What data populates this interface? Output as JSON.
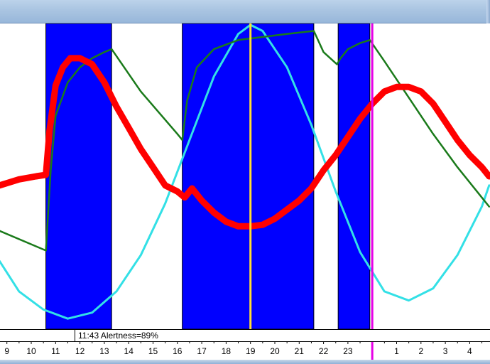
{
  "window": {
    "title": ""
  },
  "status_bar": {
    "text": "11:43 Alertness=89%"
  },
  "colors": {
    "titlebar": "#a9c4e1",
    "plot_background": "#ffffff",
    "sleep_band": "#0000ff",
    "alertness_curve": "#ff0000",
    "circadian_curve": "#33e0e6",
    "homeostatic_curve": "#1a7a1a",
    "cursor_line": "#ffdd33",
    "current_time_line": "#e600e6",
    "tick_color": "#000000"
  },
  "chart_data": {
    "type": "line",
    "title": "",
    "xlabel": "",
    "ylabel": "",
    "x_unit": "hour of day",
    "x_tick_labels": [
      "9",
      "10",
      "11",
      "12",
      "13",
      "14",
      "15",
      "16",
      "17",
      "18",
      "19",
      "20",
      "21",
      "22",
      "23",
      "",
      "1",
      "2",
      "3",
      "4"
    ],
    "x_range": [
      8.7,
      28.8
    ],
    "ylim": [
      0,
      100
    ],
    "grid": false,
    "legend": "none",
    "sleep_periods": [
      {
        "start": 10.6,
        "end": 13.3
      },
      {
        "start": 16.2,
        "end": 21.6
      },
      {
        "start": 22.6,
        "end": 23.9
      }
    ],
    "cursor_time": 19.0,
    "current_time": 24.0,
    "series": [
      {
        "key": "alertness",
        "x": [
          8.7,
          9.5,
          10.2,
          10.6,
          10.75,
          11.0,
          11.3,
          11.6,
          12.0,
          12.5,
          13.0,
          13.5,
          14.0,
          14.5,
          15.0,
          15.5,
          16.0,
          16.3,
          16.6,
          17.0,
          17.5,
          18.0,
          18.5,
          19.0,
          19.5,
          20.0,
          20.5,
          21.0,
          21.5,
          22.0,
          22.5,
          23.0,
          23.5,
          24.0,
          24.5,
          25.0,
          25.5,
          26.0,
          26.5,
          27.0,
          27.5,
          28.0,
          28.5,
          28.8
        ],
        "y": [
          47,
          49,
          50,
          50.5,
          65,
          80,
          86,
          89,
          89,
          87,
          81,
          73,
          66,
          59,
          53,
          47,
          45,
          43,
          46,
          42,
          38,
          35,
          33.5,
          33.5,
          34,
          36,
          39,
          42,
          46,
          52,
          57,
          63,
          69,
          74,
          78,
          79.5,
          79.5,
          78,
          74,
          68,
          62,
          57,
          53,
          50
        ]
      },
      {
        "key": "circadian",
        "x": [
          8.7,
          9.5,
          10.5,
          11.5,
          12.5,
          13.5,
          14.5,
          15.5,
          16.5,
          17.5,
          18.5,
          19.0,
          19.5,
          20.5,
          21.5,
          22.5,
          23.5,
          24.5,
          25.5,
          26.5,
          27.5,
          28.5,
          28.8
        ],
        "y": [
          22,
          12,
          6,
          3,
          5,
          12,
          24,
          41,
          62,
          83,
          97,
          100,
          98,
          86,
          67,
          45,
          25,
          12,
          9,
          13,
          24,
          40,
          47
        ]
      },
      {
        "key": "homeostatic",
        "x": [
          8.7,
          10.6,
          10.8,
          11.0,
          11.5,
          12.0,
          12.5,
          13.0,
          13.3,
          14.5,
          16.0,
          16.2,
          16.4,
          16.8,
          17.5,
          18.5,
          19.5,
          20.5,
          21.6,
          22.0,
          22.55,
          22.7,
          23.0,
          23.5,
          23.9,
          24.5,
          25.5,
          26.5,
          27.5,
          28.5,
          28.8
        ],
        "y": [
          32,
          25.5,
          52,
          70,
          81,
          86,
          89,
          91,
          92,
          78,
          64,
          62,
          75,
          86,
          92,
          95,
          96,
          97,
          98,
          91,
          87,
          89,
          92,
          94,
          95,
          88,
          76,
          64,
          53,
          43,
          40
        ]
      }
    ]
  }
}
